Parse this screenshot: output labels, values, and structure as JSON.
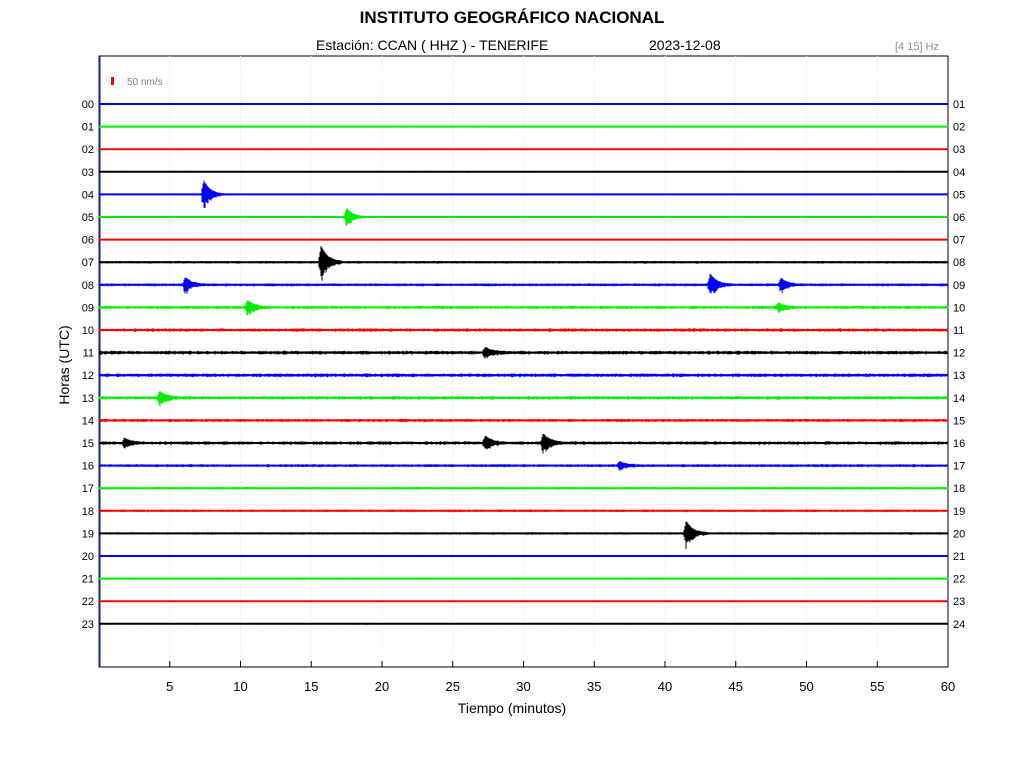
{
  "header": {
    "title": "INSTITUTO GEOGRÁFICO NACIONAL",
    "station": "Estación:  CCAN ( HHZ ) - TENERIFE",
    "date": "2023-12-08",
    "filter": "[4 15] Hz"
  },
  "chart_data": {
    "type": "line",
    "subtype": "helicorder",
    "xlabel": "Tiempo (minutos)",
    "ylabel": "Horas (UTC)",
    "xlim": [
      0,
      60
    ],
    "x_ticks": [
      "5",
      "10",
      "15",
      "20",
      "25",
      "30",
      "35",
      "40",
      "45",
      "50",
      "55",
      "60"
    ],
    "left_labels": [
      "00",
      "01",
      "02",
      "03",
      "04",
      "05",
      "06",
      "07",
      "08",
      "09",
      "10",
      "11",
      "12",
      "13",
      "14",
      "15",
      "16",
      "17",
      "18",
      "19",
      "20",
      "21",
      "22",
      "23"
    ],
    "right_labels": [
      "01",
      "02",
      "03",
      "04",
      "05",
      "06",
      "07",
      "08",
      "09",
      "10",
      "11",
      "12",
      "13",
      "14",
      "15",
      "16",
      "17",
      "18",
      "19",
      "20",
      "21",
      "22",
      "23",
      "24"
    ],
    "scale_label": "50 nm/s",
    "scale_color": "#ff0000",
    "grid": true,
    "trace_colors": [
      "#0000ff",
      "#00ee00",
      "#ff0000",
      "#000000"
    ],
    "noise": [
      0.4,
      0.5,
      0.5,
      0.5,
      0.5,
      0.5,
      0.5,
      0.9,
      1.0,
      1.1,
      1.2,
      1.3,
      1.3,
      1.2,
      1.1,
      1.2,
      1.0,
      0.8,
      0.8,
      0.8,
      0.6,
      0.6,
      0.5,
      0.5
    ],
    "events": [
      {
        "hour": 4,
        "minute": 7.4,
        "amplitude": 3.5
      },
      {
        "hour": 5,
        "minute": 17.5,
        "amplitude": 2.2
      },
      {
        "hour": 7,
        "minute": 15.7,
        "amplitude": 4.0
      },
      {
        "hour": 8,
        "minute": 6.1,
        "amplitude": 1.8
      },
      {
        "hour": 8,
        "minute": 43.2,
        "amplitude": 2.6
      },
      {
        "hour": 8,
        "minute": 48.2,
        "amplitude": 1.5
      },
      {
        "hour": 9,
        "minute": 10.5,
        "amplitude": 1.6
      },
      {
        "hour": 9,
        "minute": 48.0,
        "amplitude": 1.0
      },
      {
        "hour": 11,
        "minute": 27.3,
        "amplitude": 1.2
      },
      {
        "hour": 13,
        "minute": 4.3,
        "amplitude": 1.5
      },
      {
        "hour": 15,
        "minute": 1.8,
        "amplitude": 1.0
      },
      {
        "hour": 15,
        "minute": 27.3,
        "amplitude": 1.6
      },
      {
        "hour": 15,
        "minute": 31.4,
        "amplitude": 2.2
      },
      {
        "hour": 16,
        "minute": 36.8,
        "amplitude": 0.9
      },
      {
        "hour": 19,
        "minute": 41.5,
        "amplitude": 3.0
      }
    ]
  }
}
